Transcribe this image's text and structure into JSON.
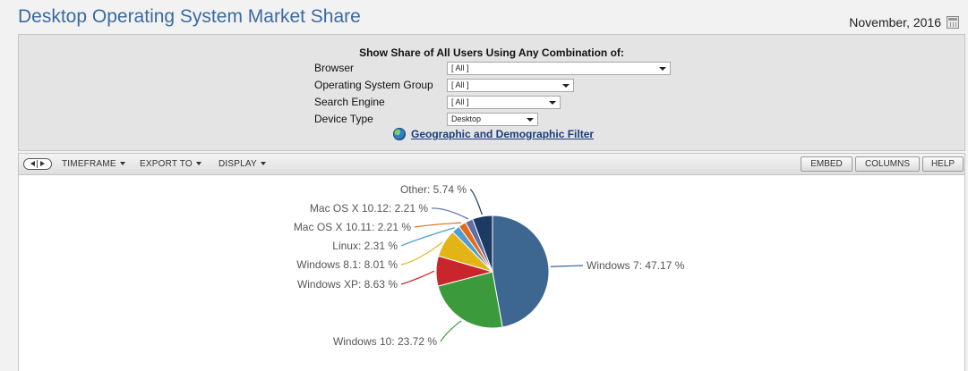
{
  "header": {
    "title": "Desktop Operating System Market Share",
    "date": "November, 2016"
  },
  "filters": {
    "heading": "Show Share of All Users Using Any Combination of:",
    "rows": [
      {
        "label": "Browser",
        "value": "[ All ]"
      },
      {
        "label": "Operating System Group",
        "value": "[ All ]"
      },
      {
        "label": "Search Engine",
        "value": "[ All ]"
      },
      {
        "label": "Device Type",
        "value": "Desktop"
      }
    ],
    "geo_link": "Geographic and Demographic Filter"
  },
  "toolbar": {
    "menus": [
      "TIMEFRAME",
      "EXPORT TO",
      "DISPLAY"
    ],
    "buttons": [
      "EMBED",
      "COLUMNS",
      "HELP"
    ]
  },
  "chart_data": {
    "type": "pie",
    "slices": [
      {
        "name": "Windows 7",
        "value": 47.17,
        "label": "Windows 7: 47.17 %",
        "color": "#3d6690"
      },
      {
        "name": "Windows 10",
        "value": 23.72,
        "label": "Windows 10: 23.72 %",
        "color": "#3b9a3b"
      },
      {
        "name": "Windows XP",
        "value": 8.63,
        "label": "Windows XP: 8.63 %",
        "color": "#c8262c"
      },
      {
        "name": "Windows 8.1",
        "value": 8.01,
        "label": "Windows 8.1: 8.01 %",
        "color": "#e2b416"
      },
      {
        "name": "Linux",
        "value": 2.31,
        "label": "Linux: 2.31 %",
        "color": "#4f9cd3"
      },
      {
        "name": "Mac OS X 10.11",
        "value": 2.21,
        "label": "Mac OS X 10.11: 2.21 %",
        "color": "#e06d1c"
      },
      {
        "name": "Mac OS X 10.12",
        "value": 2.21,
        "label": "Mac OS X 10.12: 2.21 %",
        "color": "#5f6fa7"
      },
      {
        "name": "Other",
        "value": 5.74,
        "label": "Other: 5.74 %",
        "color": "#1c3a63"
      }
    ]
  }
}
